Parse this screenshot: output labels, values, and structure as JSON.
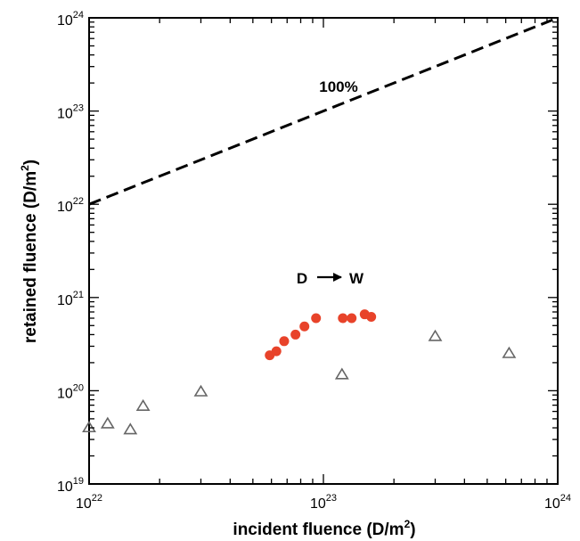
{
  "chart_data": {
    "type": "scatter",
    "xlabel": "incident fluence (D/m",
    "xlabel_sup": "2",
    "xlabel_close": ")",
    "ylabel": "retained fluence (D/m",
    "ylabel_sup": "2",
    "ylabel_close": ")",
    "xscale": "log",
    "yscale": "log",
    "xlim": [
      1e+22,
      1e+24
    ],
    "ylim": [
      1e+19,
      1e+24
    ],
    "grid": false,
    "xticks": [
      {
        "base": "10",
        "exp": "22",
        "value": 1e+22
      },
      {
        "base": "10",
        "exp": "23",
        "value": 1e+23
      },
      {
        "base": "10",
        "exp": "24",
        "value": 1e+24
      }
    ],
    "yticks": [
      {
        "base": "10",
        "exp": "19",
        "value": 1e+19
      },
      {
        "base": "10",
        "exp": "20",
        "value": 1e+20
      },
      {
        "base": "10",
        "exp": "21",
        "value": 1e+21
      },
      {
        "base": "10",
        "exp": "22",
        "value": 1e+22
      },
      {
        "base": "10",
        "exp": "23",
        "value": 1e+23
      },
      {
        "base": "10",
        "exp": "24",
        "value": 1e+24
      }
    ],
    "reference_line": {
      "label": "100%",
      "style": "dashed",
      "color": "#000000",
      "x": [
        1e+22,
        1e+24
      ],
      "y": [
        1e+22,
        1e+24
      ]
    },
    "annotations": [
      {
        "text_left": "D",
        "text_right": "W"
      }
    ],
    "series": [
      {
        "marker": "circle-filled",
        "color": "#e8432a",
        "points": [
          [
            5.9e+22,
            2.4e+20
          ],
          [
            6.3e+22,
            2.65e+20
          ],
          [
            6.8e+22,
            3.4e+20
          ],
          [
            7.6e+22,
            4e+20
          ],
          [
            8.3e+22,
            4.9e+20
          ],
          [
            9.3e+22,
            6e+20
          ],
          [
            1.21e+23,
            6e+20
          ],
          [
            1.32e+23,
            6e+20
          ],
          [
            1.5e+23,
            6.6e+20
          ],
          [
            1.6e+23,
            6.2e+20
          ]
        ]
      },
      {
        "marker": "triangle-open",
        "color": "#666666",
        "points": [
          [
            1e+22,
            4e+19
          ],
          [
            1.2e+22,
            4.4e+19
          ],
          [
            1.5e+22,
            3.8e+19
          ],
          [
            1.7e+22,
            6.8e+19
          ],
          [
            3e+22,
            9.7e+19
          ],
          [
            1.2e+23,
            1.48e+20
          ],
          [
            3e+23,
            3.8e+20
          ],
          [
            6.2e+23,
            2.5e+20
          ]
        ]
      }
    ]
  }
}
